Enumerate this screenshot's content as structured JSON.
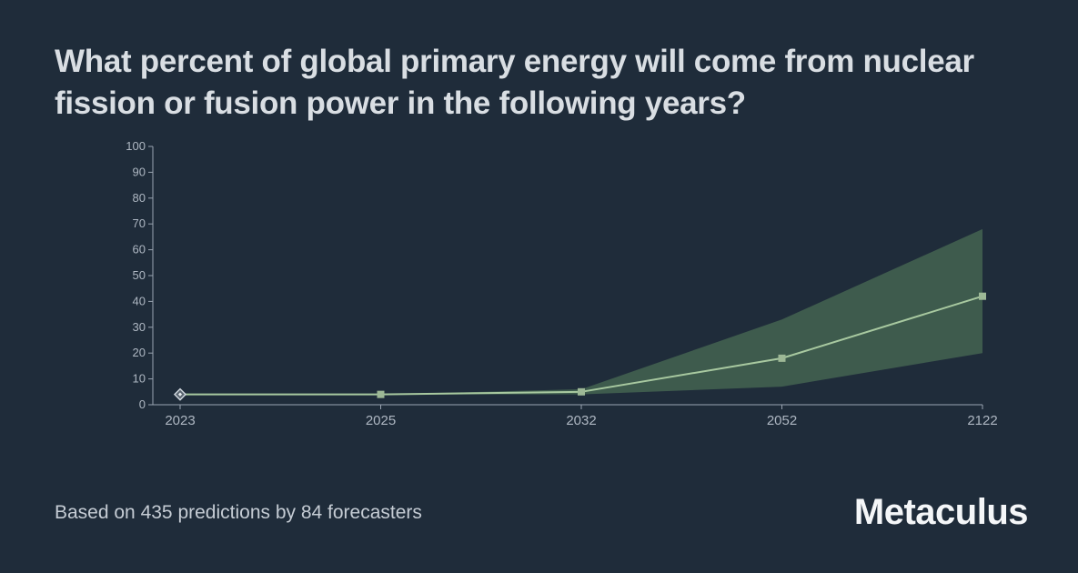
{
  "title": "What percent of global primary energy will come from nuclear fission or fusion power in the following years?",
  "footer": "Based on 435 predictions by 84 forecasters",
  "brand": "Metaculus",
  "chart": {
    "type": "line",
    "background_color": "#1f2c3a",
    "axis_color": "#9aa4b1",
    "tick_label_color": "#aeb7c2",
    "line_color": "#a8c9a0",
    "ci_fill_color": "#4a6b54",
    "marker_color": "#9db896",
    "ylim": [
      0,
      100
    ],
    "ytick_step": 10,
    "yticks": [
      0,
      10,
      20,
      30,
      40,
      50,
      60,
      70,
      80,
      90,
      100
    ],
    "x_categories": [
      "2023",
      "2025",
      "2032",
      "2052",
      "2122"
    ],
    "median": [
      4,
      4,
      5,
      18,
      42
    ],
    "ci_lower": [
      4,
      4,
      4,
      7,
      20
    ],
    "ci_upper": [
      4,
      4,
      6,
      33,
      68
    ],
    "first_point_marker": "diamond",
    "other_marker": "square",
    "marker_size": 8,
    "line_width": 2
  }
}
